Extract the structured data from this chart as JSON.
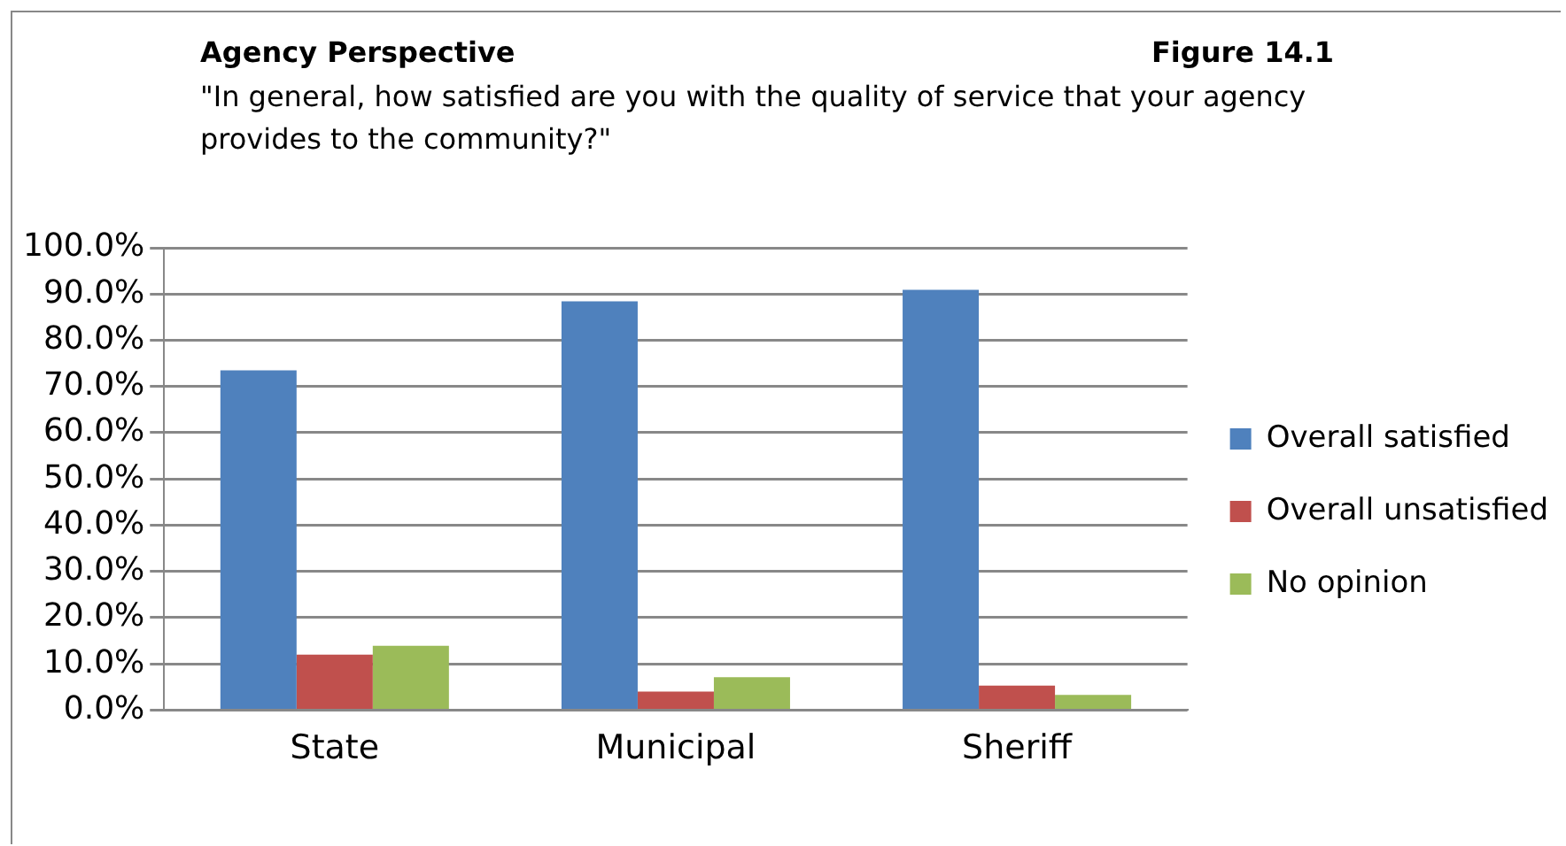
{
  "chart_data": {
    "type": "bar",
    "title": "Agency Perspective",
    "subtitle": "\"In general, how satisfied are you with the quality of service that your agency provides to  the community?\"",
    "annotations": [
      "Figure 14.1"
    ],
    "categories": [
      "State",
      "Municipal",
      "Sheriff"
    ],
    "series": [
      {
        "name": "Overall satisfied",
        "color": "#4f81bd",
        "values": [
          73.5,
          88.4,
          90.9
        ]
      },
      {
        "name": "Overall unsatisfied",
        "color": "#c0504d",
        "values": [
          12.0,
          4.0,
          5.3
        ]
      },
      {
        "name": "No opinion",
        "color": "#9bbb59",
        "values": [
          13.9,
          7.1,
          3.3
        ]
      }
    ],
    "ylim": [
      0,
      100
    ],
    "yticks": [
      {
        "value": 0,
        "label": "0.0%"
      },
      {
        "value": 10,
        "label": "10.0%"
      },
      {
        "value": 20,
        "label": "20.0%"
      },
      {
        "value": 30,
        "label": "30.0%"
      },
      {
        "value": 40,
        "label": "40.0%"
      },
      {
        "value": 50,
        "label": "50.0%"
      },
      {
        "value": 60,
        "label": "60.0%"
      },
      {
        "value": 70,
        "label": "70.0%"
      },
      {
        "value": 80,
        "label": "80.0%"
      },
      {
        "value": 90,
        "label": "90.0%"
      },
      {
        "value": 100,
        "label": "100.0%"
      }
    ],
    "grid": "y",
    "legend": "right"
  }
}
